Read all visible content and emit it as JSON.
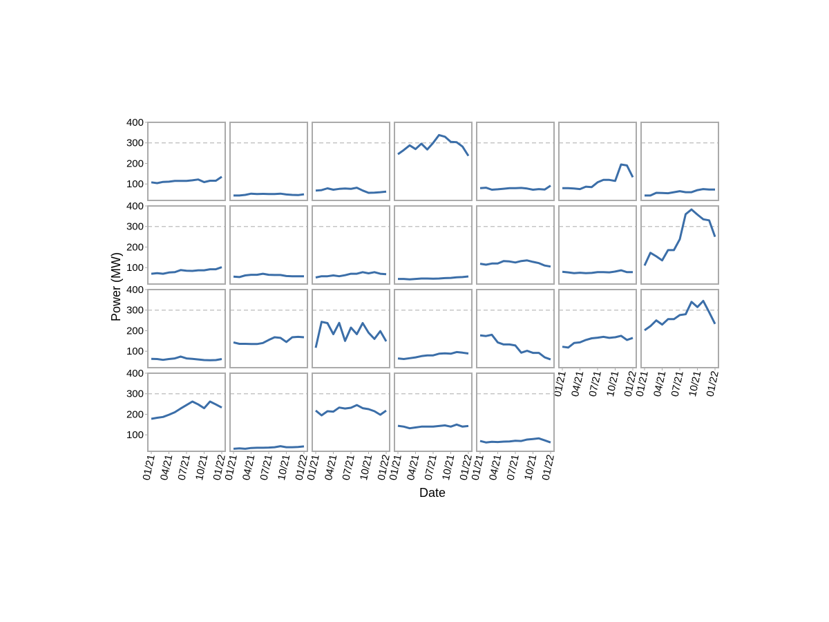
{
  "chart_data": {
    "type": "line",
    "xlabel": "Date",
    "ylabel": "Power (MW)",
    "color": "#3b6ea8",
    "categories": [
      "01/21",
      null,
      null,
      "04/21",
      null,
      null,
      "07/21",
      null,
      null,
      "10/21",
      null,
      null,
      "01/22"
    ],
    "ylim": [
      20,
      400
    ],
    "yticks": [
      100,
      200,
      300,
      400
    ],
    "hline": 300,
    "panels": [
      {
        "values": [
          108,
          104,
          110,
          111,
          115,
          115,
          115,
          118,
          122,
          109,
          116,
          116,
          135
        ]
      },
      {
        "values": [
          44,
          44,
          47,
          53,
          51,
          52,
          51,
          51,
          53,
          49,
          47,
          46,
          50
        ]
      },
      {
        "values": [
          68,
          70,
          79,
          72,
          76,
          78,
          76,
          82,
          68,
          57,
          58,
          60,
          63
        ]
      },
      {
        "values": [
          245,
          265,
          288,
          270,
          296,
          268,
          300,
          338,
          330,
          305,
          303,
          282,
          237
        ]
      },
      {
        "values": [
          80,
          82,
          72,
          74,
          77,
          80,
          80,
          81,
          78,
          72,
          75,
          73,
          92
        ]
      },
      {
        "values": [
          80,
          80,
          78,
          75,
          87,
          85,
          108,
          120,
          120,
          115,
          195,
          190,
          133
        ]
      },
      {
        "values": [
          44,
          44,
          57,
          56,
          55,
          60,
          65,
          60,
          60,
          70,
          75,
          73,
          73
        ]
      },
      {
        "values": [
          70,
          73,
          70,
          76,
          78,
          88,
          85,
          84,
          87,
          87,
          92,
          92,
          102
        ]
      },
      {
        "values": [
          56,
          54,
          62,
          65,
          65,
          70,
          65,
          64,
          64,
          59,
          58,
          58,
          58
        ]
      },
      {
        "values": [
          52,
          58,
          58,
          62,
          58,
          63,
          70,
          70,
          78,
          72,
          78,
          70,
          68
        ]
      },
      {
        "values": [
          45,
          45,
          43,
          45,
          47,
          47,
          46,
          47,
          49,
          50,
          53,
          54,
          57
        ]
      },
      {
        "values": [
          119,
          114,
          120,
          120,
          132,
          130,
          125,
          132,
          135,
          128,
          122,
          110,
          105
        ]
      },
      {
        "values": [
          80,
          77,
          73,
          75,
          73,
          74,
          78,
          78,
          77,
          81,
          87,
          78,
          78
        ]
      },
      {
        "values": [
          110,
          172,
          155,
          135,
          185,
          185,
          238,
          360,
          383,
          358,
          335,
          330,
          250
        ]
      },
      {
        "values": [
          63,
          62,
          58,
          62,
          65,
          74,
          65,
          63,
          60,
          57,
          56,
          57,
          62
        ]
      },
      {
        "values": [
          143,
          136,
          136,
          135,
          135,
          140,
          155,
          168,
          165,
          145,
          168,
          170,
          168
        ]
      },
      {
        "values": [
          117,
          243,
          237,
          183,
          238,
          150,
          215,
          183,
          237,
          190,
          160,
          198,
          148
        ]
      },
      {
        "values": [
          65,
          62,
          66,
          70,
          76,
          80,
          80,
          88,
          90,
          88,
          96,
          93,
          89
        ]
      },
      {
        "values": [
          177,
          174,
          180,
          143,
          133,
          133,
          128,
          93,
          102,
          92,
          92,
          70,
          60
        ]
      },
      {
        "values": [
          122,
          118,
          140,
          143,
          155,
          163,
          166,
          170,
          165,
          168,
          175,
          155,
          165
        ]
      },
      {
        "values": [
          202,
          222,
          250,
          230,
          256,
          256,
          276,
          280,
          340,
          315,
          345,
          290,
          233
        ]
      },
      {
        "values": [
          178,
          183,
          187,
          198,
          210,
          228,
          245,
          262,
          248,
          230,
          262,
          248,
          233
        ]
      },
      {
        "values": [
          32,
          34,
          32,
          36,
          37,
          37,
          38,
          40,
          45,
          40,
          40,
          41,
          44
        ]
      },
      {
        "values": [
          218,
          195,
          215,
          213,
          233,
          228,
          232,
          245,
          230,
          225,
          215,
          198,
          218
        ]
      },
      {
        "values": [
          144,
          140,
          132,
          136,
          140,
          140,
          140,
          143,
          146,
          140,
          150,
          140,
          143
        ]
      },
      {
        "values": [
          70,
          63,
          66,
          65,
          67,
          68,
          71,
          70,
          77,
          80,
          83,
          73,
          63
        ]
      }
    ]
  }
}
